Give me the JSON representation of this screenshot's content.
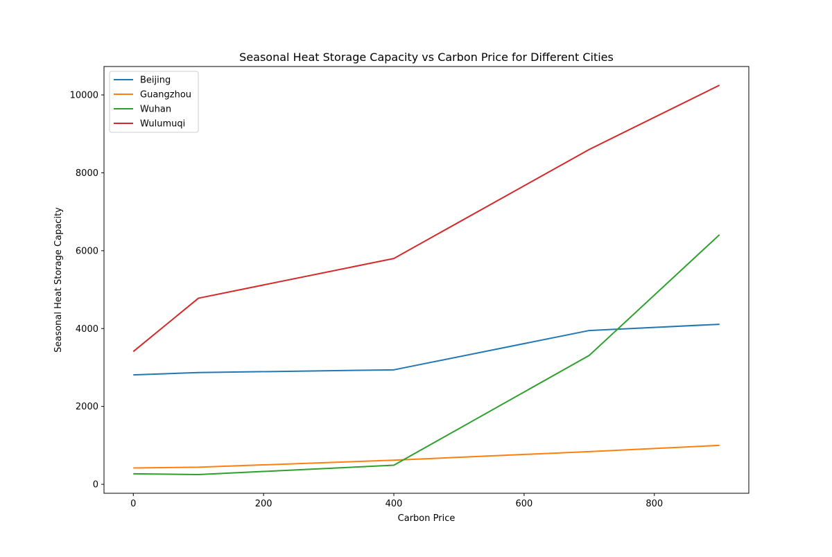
{
  "chart_data": {
    "type": "line",
    "title": "Seasonal Heat Storage Capacity vs Carbon Price for Different Cities",
    "xlabel": "Carbon Price",
    "ylabel": "Seasonal Heat Storage Capacity",
    "x": [
      0,
      100,
      400,
      700,
      900
    ],
    "xlim": [
      -45,
      945
    ],
    "ylim": [
      -230,
      10730
    ],
    "xticks": [
      0,
      200,
      400,
      600,
      800
    ],
    "yticks": [
      0,
      2000,
      4000,
      6000,
      8000,
      10000
    ],
    "grid": false,
    "legend_position": "upper left",
    "series": [
      {
        "name": "Beijing",
        "color": "#1f77b4",
        "values": [
          2810,
          2870,
          2940,
          3950,
          4110
        ]
      },
      {
        "name": "Guangzhou",
        "color": "#ff7f0e",
        "values": [
          420,
          440,
          620,
          840,
          1000
        ]
      },
      {
        "name": "Wuhan",
        "color": "#2ca02c",
        "values": [
          270,
          250,
          490,
          3310,
          6410
        ]
      },
      {
        "name": "Wulumuqi",
        "color": "#d62728",
        "values": [
          3410,
          4780,
          5800,
          8600,
          10250
        ]
      }
    ]
  }
}
